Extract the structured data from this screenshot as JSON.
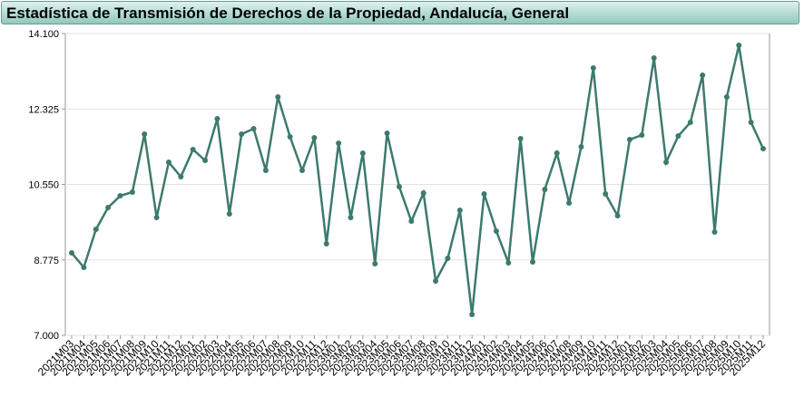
{
  "chart_data": {
    "type": "line",
    "title": "Estadística de Transmisión de Derechos de la Propiedad, Andalucía, General",
    "categories": [
      "2021M03",
      "2021M04",
      "2021M05",
      "2021M06",
      "2021M07",
      "2021M08",
      "2021M09",
      "2021M10",
      "2021M11",
      "2021M12",
      "2022M01",
      "2022M02",
      "2022M03",
      "2022M04",
      "2022M05",
      "2022M06",
      "2022M07",
      "2022M08",
      "2022M09",
      "2022M10",
      "2022M11",
      "2022M12",
      "2023M01",
      "2023M02",
      "2023M03",
      "2023M04",
      "2023M05",
      "2023M06",
      "2023M07",
      "2023M08",
      "2023M09",
      "2023M10",
      "2023M11",
      "2023M12",
      "2024M01",
      "2024M02",
      "2024M03",
      "2024M04",
      "2024M05",
      "2024M06",
      "2024M07",
      "2024M08",
      "2024M09",
      "2024M10",
      "2024M11",
      "2024M12",
      "2025M01",
      "2025M02",
      "2025M03",
      "2025M04",
      "2025M05",
      "2025M06",
      "2025M07",
      "2025M08",
      "2025M09",
      "2025M10",
      "2025M11",
      "2025M12"
    ],
    "values": [
      8940,
      8599,
      9494,
      10006,
      10283,
      10369,
      11733,
      9772,
      11072,
      10731,
      11371,
      11115,
      12096,
      9857,
      11733,
      11861,
      10880,
      12607,
      11669,
      10880,
      11648,
      9153,
      11520,
      9772,
      11285,
      8684,
      11754,
      10496,
      9686,
      10347,
      8279,
      8812,
      9942,
      7490,
      10326,
      9452,
      8706,
      11626,
      8727,
      10433,
      11285,
      10113,
      11435,
      13289,
      10326,
      9814,
      11605,
      11712,
      13524,
      11072,
      11690,
      12010,
      13119,
      9430,
      12607,
      13822,
      12010,
      11392
    ],
    "color": "#3d7a6e",
    "ylim": [
      7000,
      14100
    ],
    "yticks": [
      {
        "value": 7000,
        "label": "7.000"
      },
      {
        "value": 8775,
        "label": "8.775"
      },
      {
        "value": 10550,
        "label": "10.550"
      },
      {
        "value": 12325,
        "label": "12.325"
      },
      {
        "value": 14100,
        "label": "14.100"
      }
    ],
    "grid": true
  }
}
